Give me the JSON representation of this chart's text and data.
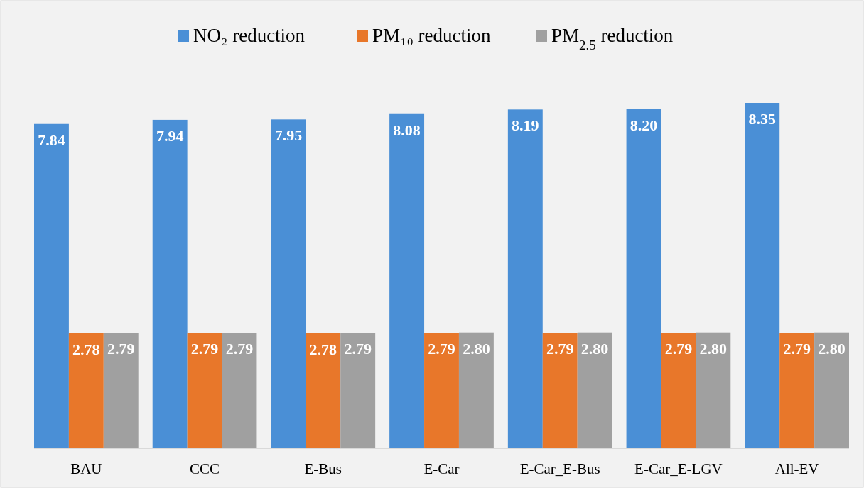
{
  "chart_data": {
    "type": "bar",
    "categories": [
      "BAU",
      "CCC",
      "E-Bus",
      "E-Car",
      "E-Car_E-Bus",
      "E-Car_E-LGV",
      "All-EV"
    ],
    "series": [
      {
        "name": "NO₂ reduction",
        "color": "#4a8fd6",
        "values": [
          7.84,
          7.94,
          7.95,
          8.08,
          8.19,
          8.2,
          8.35
        ],
        "value_labels": [
          "7.84",
          "7.94",
          "7.95",
          "8.08",
          "8.19",
          "8.20",
          "8.35"
        ]
      },
      {
        "name": "PM₁₀ reduction",
        "color": "#e8772a",
        "values": [
          2.78,
          2.79,
          2.78,
          2.79,
          2.79,
          2.79,
          2.79
        ],
        "value_labels": [
          "2.78",
          "2.79",
          "2.78",
          "2.79",
          "2.79",
          "2.79",
          "2.79"
        ]
      },
      {
        "name": "PM$_{2.5}$ reduction",
        "color": "#a0a0a0",
        "values": [
          2.79,
          2.79,
          2.79,
          2.8,
          2.8,
          2.8,
          2.8
        ],
        "value_labels": [
          "2.79",
          "2.79",
          "2.79",
          "2.80",
          "2.80",
          "2.80",
          "2.80"
        ]
      }
    ],
    "legend": "top",
    "grid": false
  }
}
